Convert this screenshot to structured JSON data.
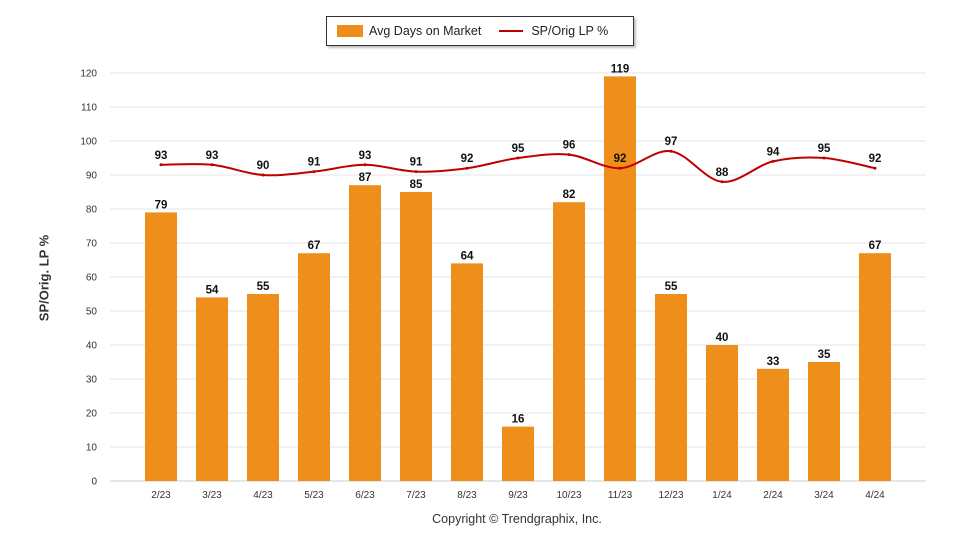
{
  "legend": {
    "bar_label": "Avg Days on Market",
    "line_label": "SP/Orig LP %"
  },
  "copyright": "Copyright © Trendgraphix, Inc.",
  "colors": {
    "bar": "#EE8E1B",
    "line": "#C00000",
    "grid": "#E6E6E6"
  },
  "chart_data": {
    "type": "bar",
    "title": "",
    "xlabel": "",
    "ylabel": "SP/Orig. LP %",
    "ylim": [
      0,
      120
    ],
    "yticks": [
      0,
      10,
      20,
      30,
      40,
      50,
      60,
      70,
      80,
      90,
      100,
      110,
      120
    ],
    "categories": [
      "2/23",
      "3/23",
      "4/23",
      "5/23",
      "6/23",
      "7/23",
      "8/23",
      "9/23",
      "10/23",
      "11/23",
      "12/23",
      "1/24",
      "2/24",
      "3/24",
      "4/24"
    ],
    "series": [
      {
        "name": "Avg Days on Market",
        "kind": "bar",
        "values": [
          79,
          54,
          55,
          67,
          87,
          85,
          64,
          16,
          82,
          119,
          55,
          40,
          33,
          35,
          67
        ]
      },
      {
        "name": "SP/Orig LP %",
        "kind": "line",
        "values": [
          93,
          93,
          90,
          91,
          93,
          91,
          92,
          95,
          96,
          92,
          97,
          88,
          94,
          95,
          92
        ]
      }
    ],
    "grid": true,
    "legend_position": "top-center"
  }
}
